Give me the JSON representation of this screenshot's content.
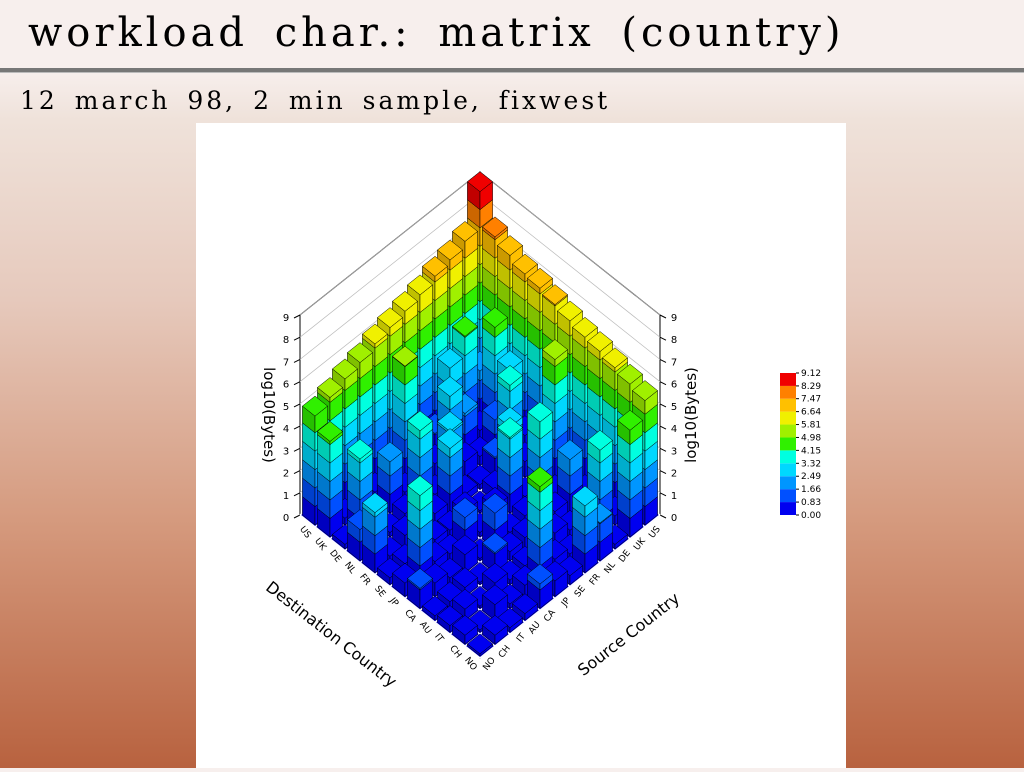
{
  "slide": {
    "title": "workload char.: matrix (country)",
    "subtitle": "12 march 98, 2 min sample, fixwest"
  },
  "chart_data": {
    "type": "bar3d",
    "source_axis_title": "Source Country",
    "destination_axis_title": "Destination Country",
    "z_axis_title": "log10(Bytes)",
    "source_countries": [
      "US",
      "UK",
      "DE",
      "NL",
      "FR",
      "SE",
      "JP",
      "CA",
      "AU",
      "IT",
      "CH",
      "NO"
    ],
    "destination_countries": [
      "US",
      "UK",
      "DE",
      "NL",
      "FR",
      "SE",
      "JP",
      "CA",
      "AU",
      "IT",
      "CH",
      "NO"
    ],
    "values": [
      [
        9.1,
        7.6,
        7.3,
        7.0,
        6.9,
        6.7,
        6.5,
        6.3,
        6.2,
        6.0,
        5.8,
        5.6
      ],
      [
        7.4,
        2.1,
        4.6,
        3.2,
        0.8,
        1.2,
        5.3,
        0.5,
        0.3,
        1.9,
        0.4,
        4.8
      ],
      [
        7.1,
        4.2,
        0.5,
        1.5,
        3.6,
        0.7,
        1.1,
        0.3,
        2.4,
        0.6,
        3.9,
        0.2
      ],
      [
        6.9,
        3.3,
        1.8,
        0.4,
        0.9,
        2.8,
        0.2,
        4.1,
        0.6,
        0.3,
        0.8,
        1.7
      ],
      [
        6.6,
        0.9,
        3.1,
        0.7,
        0.2,
        0.5,
        3.4,
        0.4,
        1.3,
        0.7,
        0.3,
        3.0
      ],
      [
        6.4,
        1.4,
        0.6,
        2.6,
        0.3,
        0.1,
        0.8,
        0.2,
        0.5,
        2.2,
        0.6,
        0.4
      ],
      [
        6.2,
        5.0,
        1.2,
        0.3,
        2.9,
        0.6,
        0.2,
        1.6,
        0.4,
        0.3,
        4.4,
        0.7
      ],
      [
        6.0,
        0.6,
        0.4,
        3.7,
        0.5,
        0.3,
        1.4,
        0.1,
        0.9,
        0.2,
        0.5,
        1.1
      ],
      [
        5.7,
        0.4,
        2.3,
        0.5,
        1.1,
        0.4,
        0.3,
        0.8,
        0.1,
        0.6,
        0.2,
        0.3
      ],
      [
        5.5,
        1.8,
        0.3,
        0.2,
        0.6,
        2.0,
        0.5,
        0.3,
        0.4,
        0.1,
        0.7,
        0.2
      ],
      [
        5.2,
        0.3,
        3.5,
        0.7,
        0.2,
        0.4,
        4.0,
        0.6,
        0.3,
        0.5,
        0.1,
        0.4
      ],
      [
        4.9,
        4.3,
        0.2,
        1.4,
        2.7,
        0.3,
        0.6,
        0.9,
        0.2,
        0.3,
        0.4,
        0.1
      ]
    ],
    "zlim": [
      0,
      9
    ],
    "zticks": [
      0,
      1,
      2,
      3,
      4,
      5,
      6,
      7,
      8,
      9
    ],
    "colorbar_ticks": [
      {
        "value": 0,
        "label": "0.00"
      },
      {
        "value": 0.83,
        "label": "0.83"
      },
      {
        "value": 1.66,
        "label": "1.66"
      },
      {
        "value": 2.49,
        "label": "2.49"
      },
      {
        "value": 3.32,
        "label": "3.32"
      },
      {
        "value": 4.15,
        "label": "4.15"
      },
      {
        "value": 4.98,
        "label": "4.98"
      },
      {
        "value": 5.81,
        "label": "5.81"
      },
      {
        "value": 6.64,
        "label": "6.64"
      },
      {
        "value": 7.47,
        "label": "7.47"
      },
      {
        "value": 8.29,
        "label": "8.29"
      },
      {
        "value": 9.12,
        "label": "9.12"
      }
    ],
    "colorbar_colors": [
      "#0000f0",
      "#0050ff",
      "#0096ff",
      "#00d8ff",
      "#00ffe0",
      "#30f000",
      "#a0f000",
      "#f0f000",
      "#ffc000",
      "#ff8000",
      "#f00000"
    ]
  }
}
